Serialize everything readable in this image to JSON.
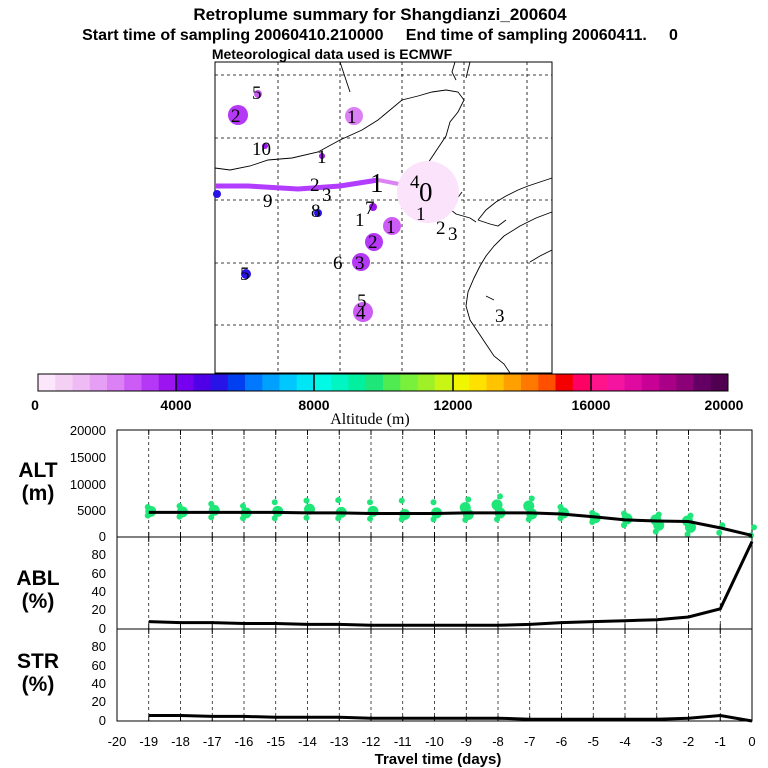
{
  "title": {
    "line1": "Retroplume summary for Shangdianzi_200604",
    "line2": "Start time of sampling 20060410.210000     End time of sampling 20060411.     0",
    "line3": "Meteorological data used is ECMWF"
  },
  "colors": {
    "plume_track": "#b23cff",
    "plume_recent": "#dc82f5",
    "alt_points": "#1ee678",
    "line": "#000000",
    "colorbar": [
      "#fbe6fb",
      "#f5d0f5",
      "#eebbf5",
      "#e5a0f5",
      "#dc80f5",
      "#cc5cf5",
      "#b438f5",
      "#9c14f0",
      "#7800f0",
      "#5000e6",
      "#2814e6",
      "#0040f0",
      "#0078ff",
      "#00a0ff",
      "#00c8ff",
      "#00e6f5",
      "#00fae6",
      "#00f5c3",
      "#00f0a0",
      "#1ee678",
      "#50eb50",
      "#78f03c",
      "#a0f028",
      "#c8f514",
      "#f0f500",
      "#ffe100",
      "#ffc300",
      "#ffa000",
      "#ff7800",
      "#ff5000",
      "#f50000",
      "#ff0064",
      "#ff148c",
      "#f514a0",
      "#e10aa0",
      "#c80096",
      "#aa0087",
      "#8c0078",
      "#640064",
      "#500050"
    ]
  },
  "map": {
    "labels": [
      {
        "text": "5",
        "cls": "s"
      },
      {
        "text": "2",
        "cls": "s"
      },
      {
        "text": "1",
        "cls": "s"
      },
      {
        "text": "10",
        "cls": "s"
      },
      {
        "text": "1",
        "cls": "s"
      },
      {
        "text": "2",
        "cls": "s"
      },
      {
        "text": "3",
        "cls": "s"
      },
      {
        "text": "1",
        "cls": "l"
      },
      {
        "text": "4",
        "cls": "s"
      },
      {
        "text": "0",
        "cls": "l"
      },
      {
        "text": "9",
        "cls": "s"
      },
      {
        "text": "8",
        "cls": "s"
      },
      {
        "text": "1",
        "cls": "s"
      },
      {
        "text": "7",
        "cls": "s"
      },
      {
        "text": "1",
        "cls": "s"
      },
      {
        "text": "1",
        "cls": "s"
      },
      {
        "text": "2",
        "cls": "s"
      },
      {
        "text": "3",
        "cls": "s"
      },
      {
        "text": "2",
        "cls": "s"
      },
      {
        "text": "6",
        "cls": "s"
      },
      {
        "text": "3",
        "cls": "s"
      },
      {
        "text": "5",
        "cls": "s"
      },
      {
        "text": "5",
        "cls": "s"
      },
      {
        "text": "4",
        "cls": "s"
      },
      {
        "text": "3",
        "cls": "s"
      }
    ]
  },
  "colorbar": {
    "ticks": [
      "0",
      "4000",
      "8000",
      "12000",
      "16000",
      "20000"
    ],
    "label": "Altitude (m)"
  },
  "chart_data": [
    {
      "type": "line",
      "panel": "ALT",
      "ylabel": [
        "ALT",
        "(m)"
      ],
      "ylim": [
        0,
        20000
      ],
      "yticks": [
        "20000",
        "15000",
        "10000",
        "5000",
        "0"
      ],
      "x": [
        -19,
        -18,
        -17,
        -16,
        -15,
        -14,
        -13,
        -12,
        -11,
        -10,
        -9,
        -8,
        -7,
        -6,
        -5,
        -4,
        -3,
        -2,
        -1,
        0
      ],
      "values": [
        4600,
        4600,
        4600,
        4600,
        4600,
        4500,
        4500,
        4400,
        4400,
        4400,
        4500,
        4500,
        4500,
        4300,
        3800,
        3200,
        3000,
        2900,
        1700,
        300
      ],
      "scatter_clusters": [
        {
          "x": -19,
          "y": [
            4000,
            4800,
            5600
          ]
        },
        {
          "x": -18,
          "y": [
            3800,
            4700,
            5800
          ]
        },
        {
          "x": -17,
          "y": [
            3700,
            5000,
            6200
          ]
        },
        {
          "x": -16,
          "y": [
            3500,
            4500,
            5800
          ]
        },
        {
          "x": -15,
          "y": [
            3500,
            4800,
            6500
          ]
        },
        {
          "x": -14,
          "y": [
            3600,
            5200,
            6800
          ]
        },
        {
          "x": -13,
          "y": [
            3500,
            4600,
            6900
          ]
        },
        {
          "x": -12,
          "y": [
            3400,
            4800,
            6500
          ]
        },
        {
          "x": -11,
          "y": [
            3300,
            4200,
            6800
          ]
        },
        {
          "x": -10,
          "y": [
            3300,
            4500,
            6500
          ]
        },
        {
          "x": -9,
          "y": [
            3200,
            4200,
            5500,
            7000
          ]
        },
        {
          "x": -8,
          "y": [
            3300,
            4500,
            6000,
            7600
          ]
        },
        {
          "x": -7,
          "y": [
            3300,
            4300,
            5800,
            7200
          ]
        },
        {
          "x": -6,
          "y": [
            3500,
            4500,
            5600
          ]
        },
        {
          "x": -5,
          "y": [
            2800,
            3600,
            4500
          ]
        },
        {
          "x": -4,
          "y": [
            2200,
            3400,
            4400
          ]
        },
        {
          "x": -3,
          "y": [
            1000,
            2200,
            3200,
            4200
          ]
        },
        {
          "x": -2,
          "y": [
            500,
            1800,
            3000,
            4000
          ]
        },
        {
          "x": -1,
          "y": [
            800,
            2200
          ]
        },
        {
          "x": 0,
          "y": [
            300,
            1800
          ]
        }
      ]
    },
    {
      "type": "line",
      "panel": "ABL",
      "ylabel": [
        "ABL",
        "(%)"
      ],
      "ylim": [
        0,
        100
      ],
      "yticks": [
        "80",
        "60",
        "40",
        "20",
        "0"
      ],
      "x": [
        -19,
        -18,
        -17,
        -16,
        -15,
        -14,
        -13,
        -12,
        -11,
        -10,
        -9,
        -8,
        -7,
        -6,
        -5,
        -4,
        -3,
        -2,
        -1,
        0
      ],
      "values": [
        8,
        7,
        7,
        6,
        6,
        5,
        5,
        4,
        4,
        4,
        4,
        4,
        5,
        7,
        8,
        9,
        10,
        13,
        22,
        95
      ]
    },
    {
      "type": "line",
      "panel": "STR",
      "ylabel": [
        "STR",
        "(%)"
      ],
      "ylim": [
        0,
        100
      ],
      "yticks": [
        "80",
        "60",
        "40",
        "20",
        "0"
      ],
      "x": [
        -19,
        -18,
        -17,
        -16,
        -15,
        -14,
        -13,
        -12,
        -11,
        -10,
        -9,
        -8,
        -7,
        -6,
        -5,
        -4,
        -3,
        -2,
        -1,
        0
      ],
      "values": [
        6,
        6,
        5,
        5,
        4,
        4,
        4,
        3,
        3,
        3,
        3,
        3,
        2,
        2,
        2,
        2,
        2,
        3,
        6,
        0
      ],
      "xlabel": "Travel time (days)",
      "xticks": [
        "-20",
        "-19",
        "-18",
        "-17",
        "-16",
        "-15",
        "-14",
        "-13",
        "-12",
        "-11",
        "-10",
        "-9",
        "-8",
        "-7",
        "-6",
        "-5",
        "-4",
        "-3",
        "-2",
        "-1",
        "0"
      ]
    }
  ]
}
